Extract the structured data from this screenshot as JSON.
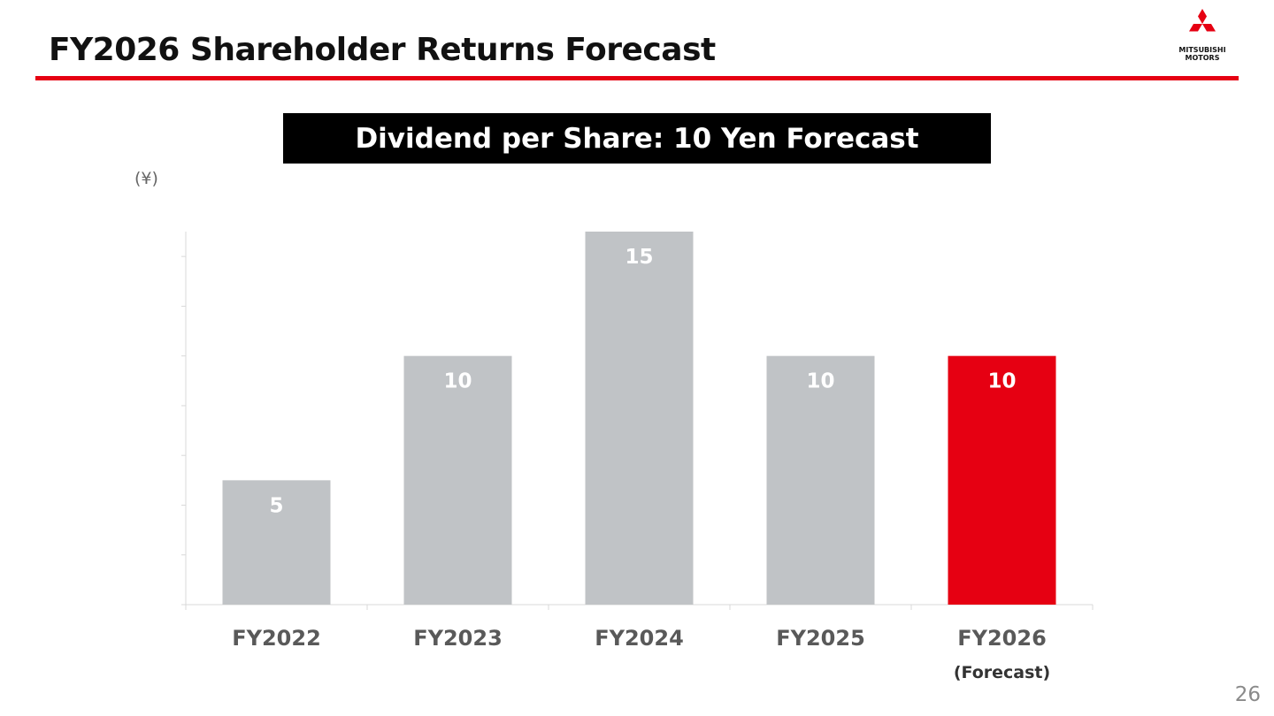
{
  "slide": {
    "title": "FY2026 Shareholder Returns Forecast",
    "banner": "Dividend per Share: 10 Yen Forecast",
    "page_number": "26"
  },
  "logo": {
    "icon": "three-diamonds-icon",
    "line1": "MITSUBISHI",
    "line2": "MOTORS",
    "color": "#e60012"
  },
  "chart_data": {
    "type": "bar",
    "unit_label": "(¥)",
    "categories": [
      "FY2022",
      "FY2023",
      "FY2024",
      "FY2025",
      "FY2026"
    ],
    "sublabels": [
      "",
      "",
      "",
      "",
      "(Forecast)"
    ],
    "values": [
      5,
      10,
      15,
      10,
      10
    ],
    "data_labels": [
      "5",
      "10",
      "15",
      "10",
      "10"
    ],
    "colors": [
      "#c0c3c6",
      "#c0c3c6",
      "#c0c3c6",
      "#c0c3c6",
      "#e60012"
    ],
    "highlight_index": 4,
    "ylim": [
      0,
      15
    ],
    "grid": false,
    "legend": "none"
  }
}
